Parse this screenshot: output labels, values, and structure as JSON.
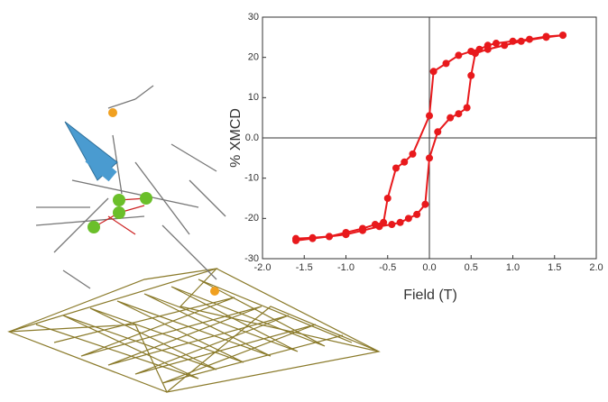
{
  "chart_data": {
    "type": "line",
    "x_label": "Field (T)",
    "y_label": "% XMCD",
    "x": [
      1.6,
      1.4,
      1.2,
      1.0,
      0.8,
      0.7,
      0.6,
      0.5,
      0.35,
      0.2,
      0.05,
      0.0,
      -0.2,
      -0.3,
      -0.4,
      -0.5,
      -0.55,
      -0.65,
      -0.8,
      -1.0,
      -1.2,
      -1.4,
      -1.6,
      -1.6,
      -1.4,
      -1.2,
      -1.0,
      -0.8,
      -0.6,
      -0.45,
      -0.35,
      -0.25,
      -0.15,
      -0.05,
      0.0,
      0.1,
      0.25,
      0.35,
      0.45,
      0.5,
      0.55,
      0.7,
      0.9,
      1.1,
      1.4,
      1.6
    ],
    "values": [
      25.5,
      25.2,
      24.5,
      24,
      23.5,
      23,
      22,
      21.5,
      20.5,
      18.5,
      16.5,
      5.5,
      -4,
      -6,
      -7.5,
      -15,
      -21,
      -21.5,
      -22.5,
      -23.5,
      -24.5,
      -25,
      -25.5,
      -25,
      -24.8,
      -24.5,
      -24,
      -23,
      -22,
      -21.5,
      -21,
      -20,
      -19,
      -16.5,
      -5,
      1.5,
      5,
      6,
      7.5,
      15.5,
      21,
      22,
      23,
      24,
      25,
      25.5
    ],
    "color": "#e8191c",
    "xlim": [
      -2.0,
      2.0
    ],
    "xticks": [
      {
        "value": -2.0,
        "label": "-2.0"
      },
      {
        "value": -1.5,
        "label": "-1.5"
      },
      {
        "value": -1.0,
        "label": "-1.0"
      },
      {
        "value": -0.5,
        "label": "-0.5"
      },
      {
        "value": 0,
        "label": "0.0"
      },
      {
        "value": 0.5,
        "label": "0.5"
      },
      {
        "value": 1.0,
        "label": "1.0"
      },
      {
        "value": 1.5,
        "label": "1.5"
      },
      {
        "value": 2.0,
        "label": "2.0"
      }
    ],
    "ylim": [
      -30,
      30
    ],
    "yticks": [
      -30,
      -20,
      -10,
      {
        "value": 0,
        "label": "0.0"
      },
      10,
      20,
      30
    ]
  }
}
